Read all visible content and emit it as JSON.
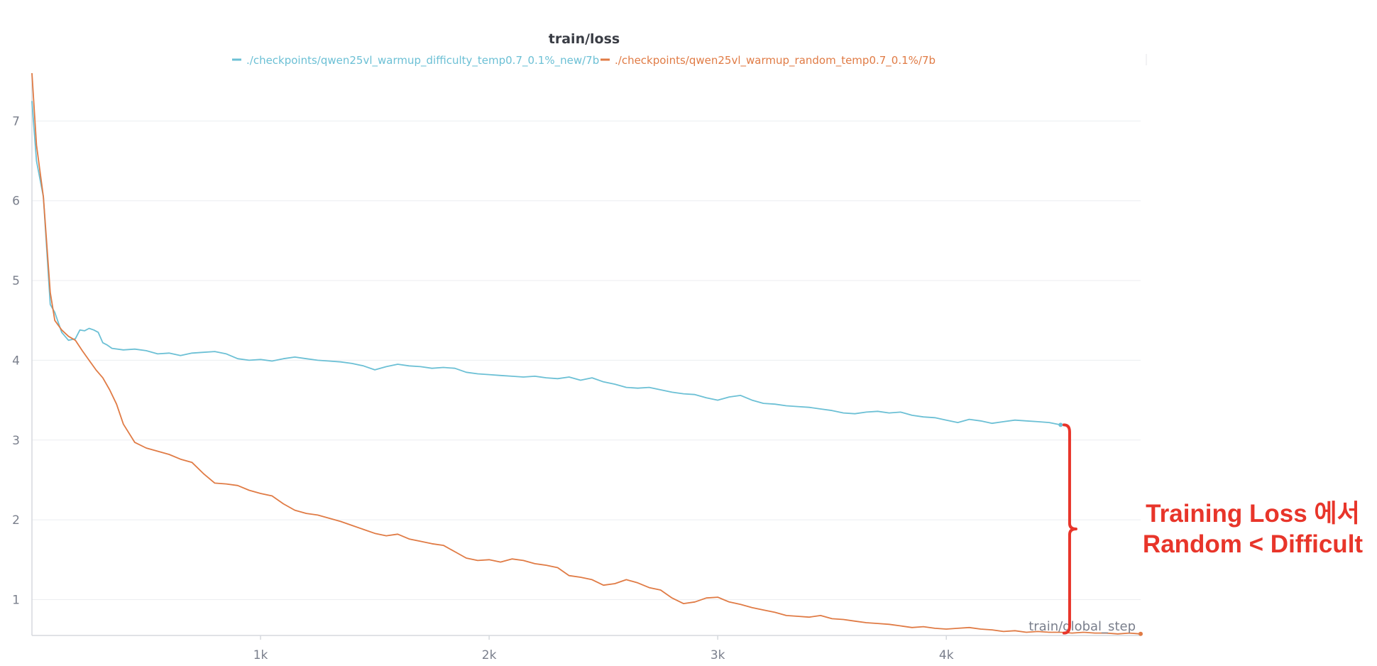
{
  "chart_data": {
    "type": "line",
    "title": "train/loss",
    "xlabel": "train/global_step",
    "ylabel": "",
    "xlim": [
      0,
      4850
    ],
    "ylim": [
      0.55,
      7.6
    ],
    "x_ticks": [
      1000,
      2000,
      3000,
      4000
    ],
    "x_tick_labels": [
      "1k",
      "2k",
      "3k",
      "4k"
    ],
    "y_ticks": [
      1,
      2,
      3,
      4,
      5,
      6,
      7
    ],
    "y_tick_labels": [
      "1",
      "2",
      "3",
      "4",
      "5",
      "6",
      "7"
    ],
    "grid": true,
    "legend_position": "top-center",
    "series": [
      {
        "name": "./checkpoints/qwen25vl_warmup_difficulty_temp0.7_0.1%_new/7b",
        "color": "#6cc0d5",
        "x": [
          0,
          20,
          50,
          80,
          100,
          130,
          160,
          190,
          210,
          230,
          250,
          270,
          290,
          310,
          330,
          350,
          400,
          450,
          500,
          550,
          600,
          650,
          700,
          750,
          800,
          850,
          900,
          950,
          1000,
          1050,
          1100,
          1150,
          1200,
          1250,
          1300,
          1350,
          1400,
          1450,
          1500,
          1550,
          1600,
          1650,
          1700,
          1750,
          1800,
          1850,
          1900,
          1950,
          2000,
          2050,
          2100,
          2150,
          2200,
          2250,
          2300,
          2350,
          2400,
          2450,
          2500,
          2550,
          2600,
          2650,
          2700,
          2750,
          2800,
          2850,
          2900,
          2950,
          3000,
          3050,
          3100,
          3150,
          3200,
          3250,
          3300,
          3350,
          3400,
          3450,
          3500,
          3550,
          3600,
          3650,
          3700,
          3750,
          3800,
          3850,
          3900,
          3950,
          4000,
          4050,
          4100,
          4150,
          4200,
          4250,
          4300,
          4350,
          4400,
          4450,
          4500
        ],
        "values": [
          7.25,
          6.5,
          6.05,
          4.7,
          4.6,
          4.35,
          4.25,
          4.27,
          4.38,
          4.37,
          4.4,
          4.38,
          4.35,
          4.22,
          4.19,
          4.15,
          4.13,
          4.14,
          4.12,
          4.08,
          4.09,
          4.06,
          4.09,
          4.1,
          4.11,
          4.08,
          4.02,
          4.0,
          4.01,
          3.99,
          4.02,
          4.04,
          4.02,
          4.0,
          3.99,
          3.98,
          3.96,
          3.93,
          3.88,
          3.92,
          3.95,
          3.93,
          3.92,
          3.9,
          3.91,
          3.9,
          3.85,
          3.83,
          3.82,
          3.81,
          3.8,
          3.79,
          3.8,
          3.78,
          3.77,
          3.79,
          3.75,
          3.78,
          3.73,
          3.7,
          3.66,
          3.65,
          3.66,
          3.63,
          3.6,
          3.58,
          3.57,
          3.53,
          3.5,
          3.54,
          3.56,
          3.5,
          3.46,
          3.45,
          3.43,
          3.42,
          3.41,
          3.39,
          3.37,
          3.34,
          3.33,
          3.35,
          3.36,
          3.34,
          3.35,
          3.31,
          3.29,
          3.28,
          3.25,
          3.22,
          3.26,
          3.24,
          3.21,
          3.23,
          3.25,
          3.24,
          3.23,
          3.22,
          3.19
        ]
      },
      {
        "name": "./checkpoints/qwen25vl_warmup_random_temp0.7_0.1%/7b",
        "color": "#e07b45",
        "x": [
          0,
          20,
          50,
          80,
          100,
          130,
          160,
          190,
          220,
          250,
          280,
          310,
          340,
          370,
          400,
          450,
          500,
          550,
          600,
          650,
          700,
          750,
          800,
          850,
          900,
          950,
          1000,
          1050,
          1100,
          1150,
          1200,
          1250,
          1300,
          1350,
          1400,
          1450,
          1500,
          1550,
          1600,
          1650,
          1700,
          1750,
          1800,
          1850,
          1900,
          1950,
          2000,
          2050,
          2100,
          2150,
          2200,
          2250,
          2300,
          2350,
          2400,
          2450,
          2500,
          2550,
          2600,
          2650,
          2700,
          2750,
          2800,
          2850,
          2900,
          2950,
          3000,
          3050,
          3100,
          3150,
          3200,
          3250,
          3300,
          3350,
          3400,
          3450,
          3500,
          3550,
          3600,
          3650,
          3700,
          3750,
          3800,
          3850,
          3900,
          3950,
          4000,
          4050,
          4100,
          4150,
          4200,
          4250,
          4300,
          4350,
          4400,
          4450,
          4500,
          4550,
          4600,
          4650,
          4700,
          4750,
          4800,
          4850
        ],
        "values": [
          7.6,
          6.7,
          6.05,
          4.85,
          4.5,
          4.38,
          4.3,
          4.25,
          4.12,
          4.0,
          3.88,
          3.78,
          3.63,
          3.45,
          3.2,
          2.97,
          2.9,
          2.86,
          2.82,
          2.76,
          2.72,
          2.58,
          2.46,
          2.45,
          2.43,
          2.37,
          2.33,
          2.3,
          2.2,
          2.12,
          2.08,
          2.06,
          2.02,
          1.98,
          1.93,
          1.88,
          1.83,
          1.8,
          1.82,
          1.76,
          1.73,
          1.7,
          1.68,
          1.6,
          1.52,
          1.49,
          1.5,
          1.47,
          1.51,
          1.49,
          1.45,
          1.43,
          1.4,
          1.3,
          1.28,
          1.25,
          1.18,
          1.2,
          1.25,
          1.21,
          1.15,
          1.12,
          1.02,
          0.95,
          0.97,
          1.02,
          1.03,
          0.97,
          0.94,
          0.9,
          0.87,
          0.84,
          0.8,
          0.79,
          0.78,
          0.8,
          0.76,
          0.75,
          0.73,
          0.71,
          0.7,
          0.69,
          0.67,
          0.65,
          0.66,
          0.64,
          0.63,
          0.64,
          0.65,
          0.63,
          0.62,
          0.6,
          0.61,
          0.59,
          0.6,
          0.59,
          0.59,
          0.58,
          0.59,
          0.58,
          0.58,
          0.57,
          0.58,
          0.57
        ]
      }
    ],
    "annotation": {
      "text_line1": "Training Loss 에서",
      "text_line2": "Random < Difficult",
      "color": "#e8352a",
      "bracket_from": 3.19,
      "bracket_to": 0.58,
      "bracket_x": 4530
    }
  }
}
